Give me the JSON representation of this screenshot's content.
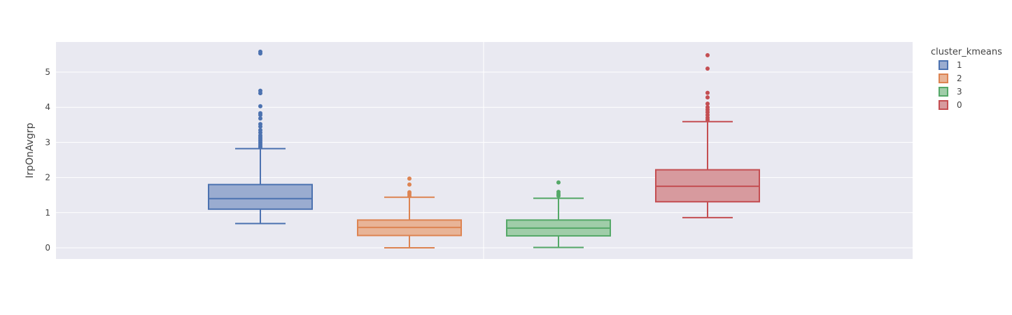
{
  "chart_data": {
    "type": "box",
    "title": "",
    "xlabel": "",
    "ylabel": "IrpOnAvgrp",
    "y_ticks": [
      "0",
      "1",
      "2",
      "3",
      "4",
      "5"
    ],
    "ylim": [
      -0.3,
      5.85
    ],
    "grid": true,
    "legend": {
      "title": "cluster_kmeans",
      "position": "right"
    },
    "series": [
      {
        "name": "1",
        "color": "#4c72b0",
        "fill": "#9aacd0",
        "q1": 1.1,
        "median": 1.4,
        "q3": 1.8,
        "lower_whisker": 0.69,
        "upper_whisker": 2.82,
        "outliers": [
          2.86,
          2.9,
          2.95,
          3.0,
          3.05,
          3.1,
          3.15,
          3.2,
          3.28,
          3.35,
          3.45,
          3.52,
          3.68,
          3.78,
          3.83,
          4.03,
          4.4,
          4.47,
          5.53,
          5.58
        ]
      },
      {
        "name": "2",
        "color": "#dd8452",
        "fill": "#e8b497",
        "q1": 0.35,
        "median": 0.58,
        "q3": 0.79,
        "lower_whisker": 0.0,
        "upper_whisker": 1.44,
        "outliers": [
          1.47,
          1.53,
          1.58,
          1.8,
          1.97
        ]
      },
      {
        "name": "3",
        "color": "#55a868",
        "fill": "#a0cda9",
        "q1": 0.34,
        "median": 0.56,
        "q3": 0.79,
        "lower_whisker": 0.01,
        "upper_whisker": 1.41,
        "outliers": [
          1.48,
          1.53,
          1.59,
          1.86
        ]
      },
      {
        "name": "0",
        "color": "#c44e52",
        "fill": "#d79a9e",
        "q1": 1.31,
        "median": 1.75,
        "q3": 2.22,
        "lower_whisker": 0.86,
        "upper_whisker": 3.59,
        "outliers": [
          3.64,
          3.7,
          3.78,
          3.86,
          3.93,
          4.0,
          4.1,
          4.28,
          4.41,
          5.1,
          5.48
        ]
      }
    ]
  }
}
